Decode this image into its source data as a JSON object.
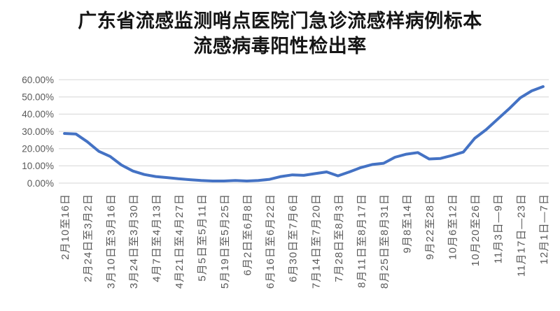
{
  "title": {
    "line1": "广东省流感监测哨点医院门急诊流感样病例标本",
    "line2": "流感病毒阳性检出率"
  },
  "colors": {
    "line": "#4472C4",
    "gridline": "#D6D6D6",
    "axis_label_text": "#595959",
    "title_text": "#151515",
    "background": "#FFFFFF"
  },
  "chart_data": {
    "type": "line",
    "title": "广东省流感监测哨点医院门急诊流感样病例标本流感病毒阳性检出率",
    "xlabel": "",
    "ylabel": "",
    "ylim": [
      0,
      60
    ],
    "yticks": [
      0,
      10,
      20,
      30,
      40,
      50,
      60
    ],
    "ytick_labels": [
      "0.00%",
      "10.00%",
      "20.00%",
      "30.00%",
      "40.00%",
      "50.00%",
      "60.00%"
    ],
    "grid": true,
    "legend": false,
    "n_points": 43,
    "x_tick_indices": [
      0,
      2,
      4,
      6,
      8,
      10,
      12,
      14,
      16,
      18,
      20,
      22,
      24,
      26,
      28,
      30,
      32,
      34,
      36,
      38,
      40,
      42
    ],
    "x_tick_labels": [
      "2月10至16日",
      "2月24日至3月2日",
      "3月10日至3月16日",
      "3月24日至3月30日",
      "4月7日至4月13日",
      "4月21日至4月27日",
      "5月5日至5月11日",
      "5月19日至5月25日",
      "6月2日至6月8日",
      "6月16日至6月22日",
      "6月30日至7月6日",
      "7月14日至7月20日",
      "7月28日至8月3日",
      "8月11日至8月17日",
      "8月25日至8月31日",
      "9月8至14日",
      "9月22至28日",
      "10月6至12日",
      "10月20至26日",
      "11月3日—9日",
      "11月17日—23日",
      "12月1日—7日"
    ],
    "series": [
      {
        "name": "流感病毒阳性检出率",
        "values": [
          28.8,
          28.5,
          24.0,
          18.5,
          15.5,
          10.5,
          7.0,
          5.0,
          3.8,
          3.2,
          2.5,
          2.0,
          1.5,
          1.2,
          1.2,
          1.5,
          1.2,
          1.5,
          2.2,
          3.8,
          4.8,
          4.5,
          5.5,
          6.5,
          4.2,
          6.5,
          9.0,
          10.8,
          11.5,
          15.0,
          16.8,
          17.7,
          14.0,
          14.3,
          16.0,
          18.0,
          26.0,
          31.0,
          37.0,
          43.0,
          49.5,
          53.5,
          56.0
        ]
      }
    ]
  }
}
